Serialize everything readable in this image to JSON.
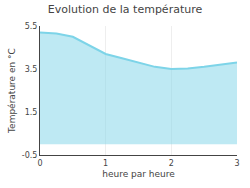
{
  "chart_data": {
    "type": "area",
    "title": "Evolution de la température",
    "xlabel": "heure par heure",
    "ylabel": "Température en °C",
    "x": [
      0,
      0.25,
      0.5,
      0.75,
      1.0,
      1.25,
      1.5,
      1.75,
      2.0,
      2.25,
      2.5,
      2.75,
      3.0
    ],
    "values": [
      5.2,
      5.15,
      5.0,
      4.6,
      4.2,
      4.0,
      3.8,
      3.6,
      3.5,
      3.52,
      3.6,
      3.7,
      3.8
    ],
    "xlim": [
      0,
      3
    ],
    "ylim": [
      -0.5,
      5.5
    ],
    "xticks": [
      0,
      1,
      2,
      3
    ],
    "yticks": [
      -0.5,
      1.5,
      3.5,
      5.5
    ],
    "color": "#7dd4e8",
    "grid": "x"
  }
}
